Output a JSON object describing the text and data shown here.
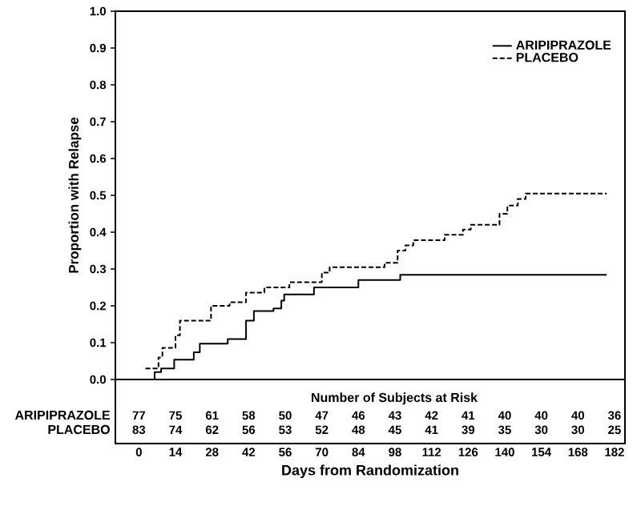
{
  "chart_data": {
    "type": "step",
    "xlabel": "Days from Randomization",
    "ylabel": "Proportion with Relapse",
    "xlim": [
      -9,
      186
    ],
    "ylim": [
      0,
      1
    ],
    "xticks": [
      0,
      14,
      28,
      42,
      56,
      70,
      84,
      98,
      112,
      126,
      140,
      154,
      168,
      182
    ],
    "yticks": [
      {
        "value": 0,
        "label": "0.0"
      },
      {
        "value": 0.1,
        "label": "0.1"
      },
      {
        "value": 0.2,
        "label": "0.2"
      },
      {
        "value": 0.3,
        "label": "0.3"
      },
      {
        "value": 0.4,
        "label": "0.4"
      },
      {
        "value": 0.5,
        "label": "0.5"
      },
      {
        "value": 0.6,
        "label": "0.6"
      },
      {
        "value": 0.7,
        "label": "0.7"
      },
      {
        "value": 0.8,
        "label": "0.8"
      },
      {
        "value": 0.9,
        "label": "0.9"
      },
      {
        "value": 1,
        "label": "1.0"
      }
    ],
    "legend": "top right",
    "series": [
      {
        "name": "ARIPIPRAZOLE",
        "color": "#000000",
        "line_style": "solid",
        "x": [
          0,
          6,
          8.5,
          13.5,
          21,
          23.3,
          34,
          41,
          44,
          51.5,
          54.5,
          55.6,
          67,
          84,
          100,
          179
        ],
        "values": [
          0,
          0.02,
          0.03,
          0.054,
          0.074,
          0.097,
          0.11,
          0.16,
          0.186,
          0.193,
          0.214,
          0.231,
          0.25,
          0.27,
          0.284,
          0.284
        ]
      },
      {
        "name": "PLACEBO",
        "color": "#000000",
        "line_style": "dashed",
        "x": [
          2.5,
          7.5,
          9,
          14,
          15.7,
          27.6,
          34.7,
          41,
          48,
          57.6,
          70,
          73,
          94,
          99,
          102,
          105,
          117,
          124,
          127,
          138,
          141,
          145,
          148,
          179
        ],
        "values": [
          0.03,
          0.06,
          0.086,
          0.12,
          0.16,
          0.2,
          0.21,
          0.236,
          0.25,
          0.264,
          0.29,
          0.305,
          0.317,
          0.35,
          0.364,
          0.378,
          0.393,
          0.407,
          0.42,
          0.45,
          0.472,
          0.49,
          0.505,
          0.505
        ]
      }
    ],
    "annotations": [
      "Number of Subjects at Risk",
      "ARIPIPRAZOLE",
      "77",
      "75",
      "61",
      "58",
      "50",
      "47",
      "46",
      "43",
      "42",
      "41",
      "40",
      "40",
      "40",
      "36",
      "PLACEBO",
      "83",
      "74",
      "62",
      "56",
      "53",
      "52",
      "48",
      "45",
      "41",
      "39",
      "35",
      "30",
      "30",
      "25"
    ]
  }
}
